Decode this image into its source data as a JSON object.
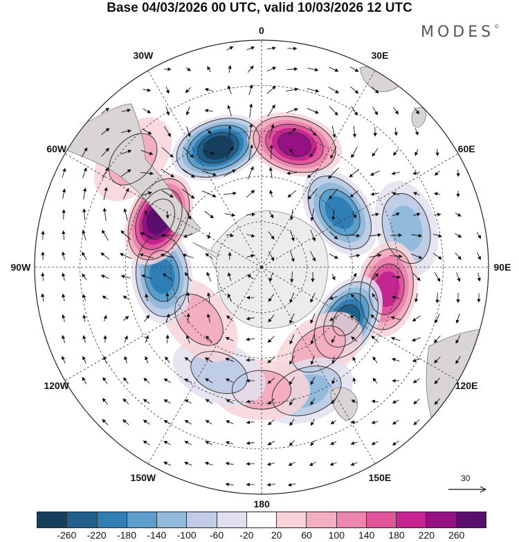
{
  "title": "Base 04/03/2026 00 UTC, valid 10/03/2026 12 UTC",
  "brand": {
    "name": "MODES",
    "mark": "©"
  },
  "longitude_labels": [
    "0",
    "30E",
    "60E",
    "90E",
    "120E",
    "150E",
    "180",
    "150W",
    "120W",
    "90W",
    "60W",
    "30W"
  ],
  "reference_vector": {
    "value": "30"
  },
  "colorbar": {
    "colors": [
      "#163f5e",
      "#1f5f8c",
      "#2f7fb6",
      "#5c9fcc",
      "#92bbdb",
      "#bfcde6",
      "#e2e0ef",
      "#ffffff",
      "#f8d4d8",
      "#f3aebf",
      "#ec86af",
      "#e0559c",
      "#c42590",
      "#961284",
      "#5a0f70"
    ],
    "tick_labels": [
      "-260",
      "-220",
      "-180",
      "-140",
      "-100",
      "-60",
      "-20",
      "20",
      "60",
      "100",
      "140",
      "180",
      "220",
      "260"
    ]
  },
  "map_data": {
    "projection": "south-polar-stereographic",
    "anomalies": [
      {
        "name": "neg-0-30W",
        "lon": -20,
        "colat": 28,
        "value": -260
      },
      {
        "name": "pos-0-30E",
        "lon": 15,
        "colat": 28,
        "value": 240
      },
      {
        "name": "neg-60E",
        "lon": 55,
        "colat": 21,
        "value": -200
      },
      {
        "name": "neg-75E",
        "lon": 75,
        "colat": 33,
        "value": -100
      },
      {
        "name": "pos-100E",
        "lon": 100,
        "colat": 28,
        "value": 200
      },
      {
        "name": "neg-120E",
        "lon": 122,
        "colat": 22,
        "value": -220
      },
      {
        "name": "pos-145E",
        "lon": 145,
        "colat": 22,
        "value": 60
      },
      {
        "name": "neg-160E",
        "lon": 160,
        "colat": 29,
        "value": -100
      },
      {
        "name": "pos-180",
        "lon": 180,
        "colat": 27,
        "value": 60
      },
      {
        "name": "neg-160W",
        "lon": -158,
        "colat": 25,
        "value": -60
      },
      {
        "name": "pos-130W",
        "lon": -130,
        "colat": 18,
        "value": 60
      },
      {
        "name": "neg-95W",
        "lon": -95,
        "colat": 22,
        "value": -180
      },
      {
        "name": "pos-65W",
        "lon": -65,
        "colat": 25,
        "value": 260
      },
      {
        "name": "pos-50W",
        "lon": -50,
        "colat": 37,
        "value": 60
      }
    ]
  }
}
